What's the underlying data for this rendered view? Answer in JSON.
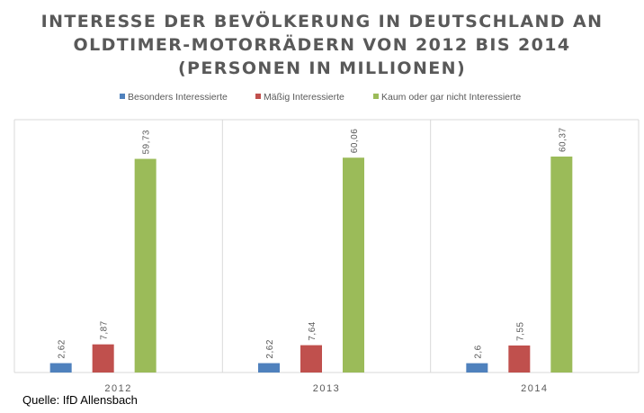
{
  "chart_data": {
    "type": "bar",
    "title": [
      "INTERESSE DER BEVÖLKERUNG IN DEUTSCHLAND AN",
      "OLDTIMER-MOTORRÄDERN VON 2012 BIS 2014",
      "(PERSONEN IN MILLIONEN)"
    ],
    "categories": [
      "2012",
      "2013",
      "2014"
    ],
    "series": [
      {
        "name": "Besonders Interessierte",
        "color": "#4F81BD",
        "values": [
          2.62,
          2.62,
          2.6
        ],
        "labels": [
          "2,62",
          "2,62",
          "2,6"
        ]
      },
      {
        "name": "Mäßig Interessierte",
        "color": "#C0504D",
        "values": [
          7.87,
          7.64,
          7.55
        ],
        "labels": [
          "7,87",
          "7,64",
          "7,55"
        ]
      },
      {
        "name": "Kaum oder gar nicht Interessierte",
        "color": "#9BBB59",
        "values": [
          59.73,
          60.06,
          60.37
        ],
        "labels": [
          "59,73",
          "60,06",
          "60,37"
        ]
      }
    ],
    "xlabel": "",
    "ylabel": "",
    "ylim": [
      0,
      60.37
    ],
    "grid": false,
    "legend_position": "top"
  },
  "source": "Quelle: IfD Allensbach"
}
